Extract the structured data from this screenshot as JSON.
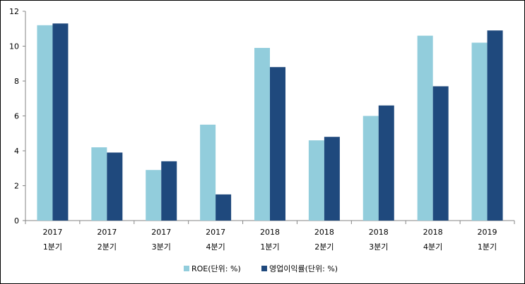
{
  "chart_data": {
    "type": "bar",
    "title": "",
    "xlabel": "",
    "ylabel": "",
    "ylim": [
      0,
      12
    ],
    "yticks": [
      0,
      2,
      4,
      6,
      8,
      10,
      12
    ],
    "categories": [
      [
        "2017",
        "1분기"
      ],
      [
        "2017",
        "2분기"
      ],
      [
        "2017",
        "3분기"
      ],
      [
        "2017",
        "4분기"
      ],
      [
        "2018",
        "1분기"
      ],
      [
        "2018",
        "2분기"
      ],
      [
        "2018",
        "3분기"
      ],
      [
        "2018",
        "4분기"
      ],
      [
        "2019",
        "1분기"
      ]
    ],
    "series": [
      {
        "name": "ROE(단위: %)",
        "color": "#92CDDC",
        "values": [
          11.2,
          4.2,
          2.9,
          5.5,
          9.9,
          4.6,
          6.0,
          10.6,
          10.2
        ]
      },
      {
        "name": "영업이익률(단위: %)",
        "color": "#1F497D",
        "values": [
          11.3,
          3.9,
          3.4,
          1.5,
          8.8,
          4.8,
          6.6,
          7.7,
          10.9
        ]
      }
    ],
    "grid": false,
    "legend_position": "bottom"
  }
}
